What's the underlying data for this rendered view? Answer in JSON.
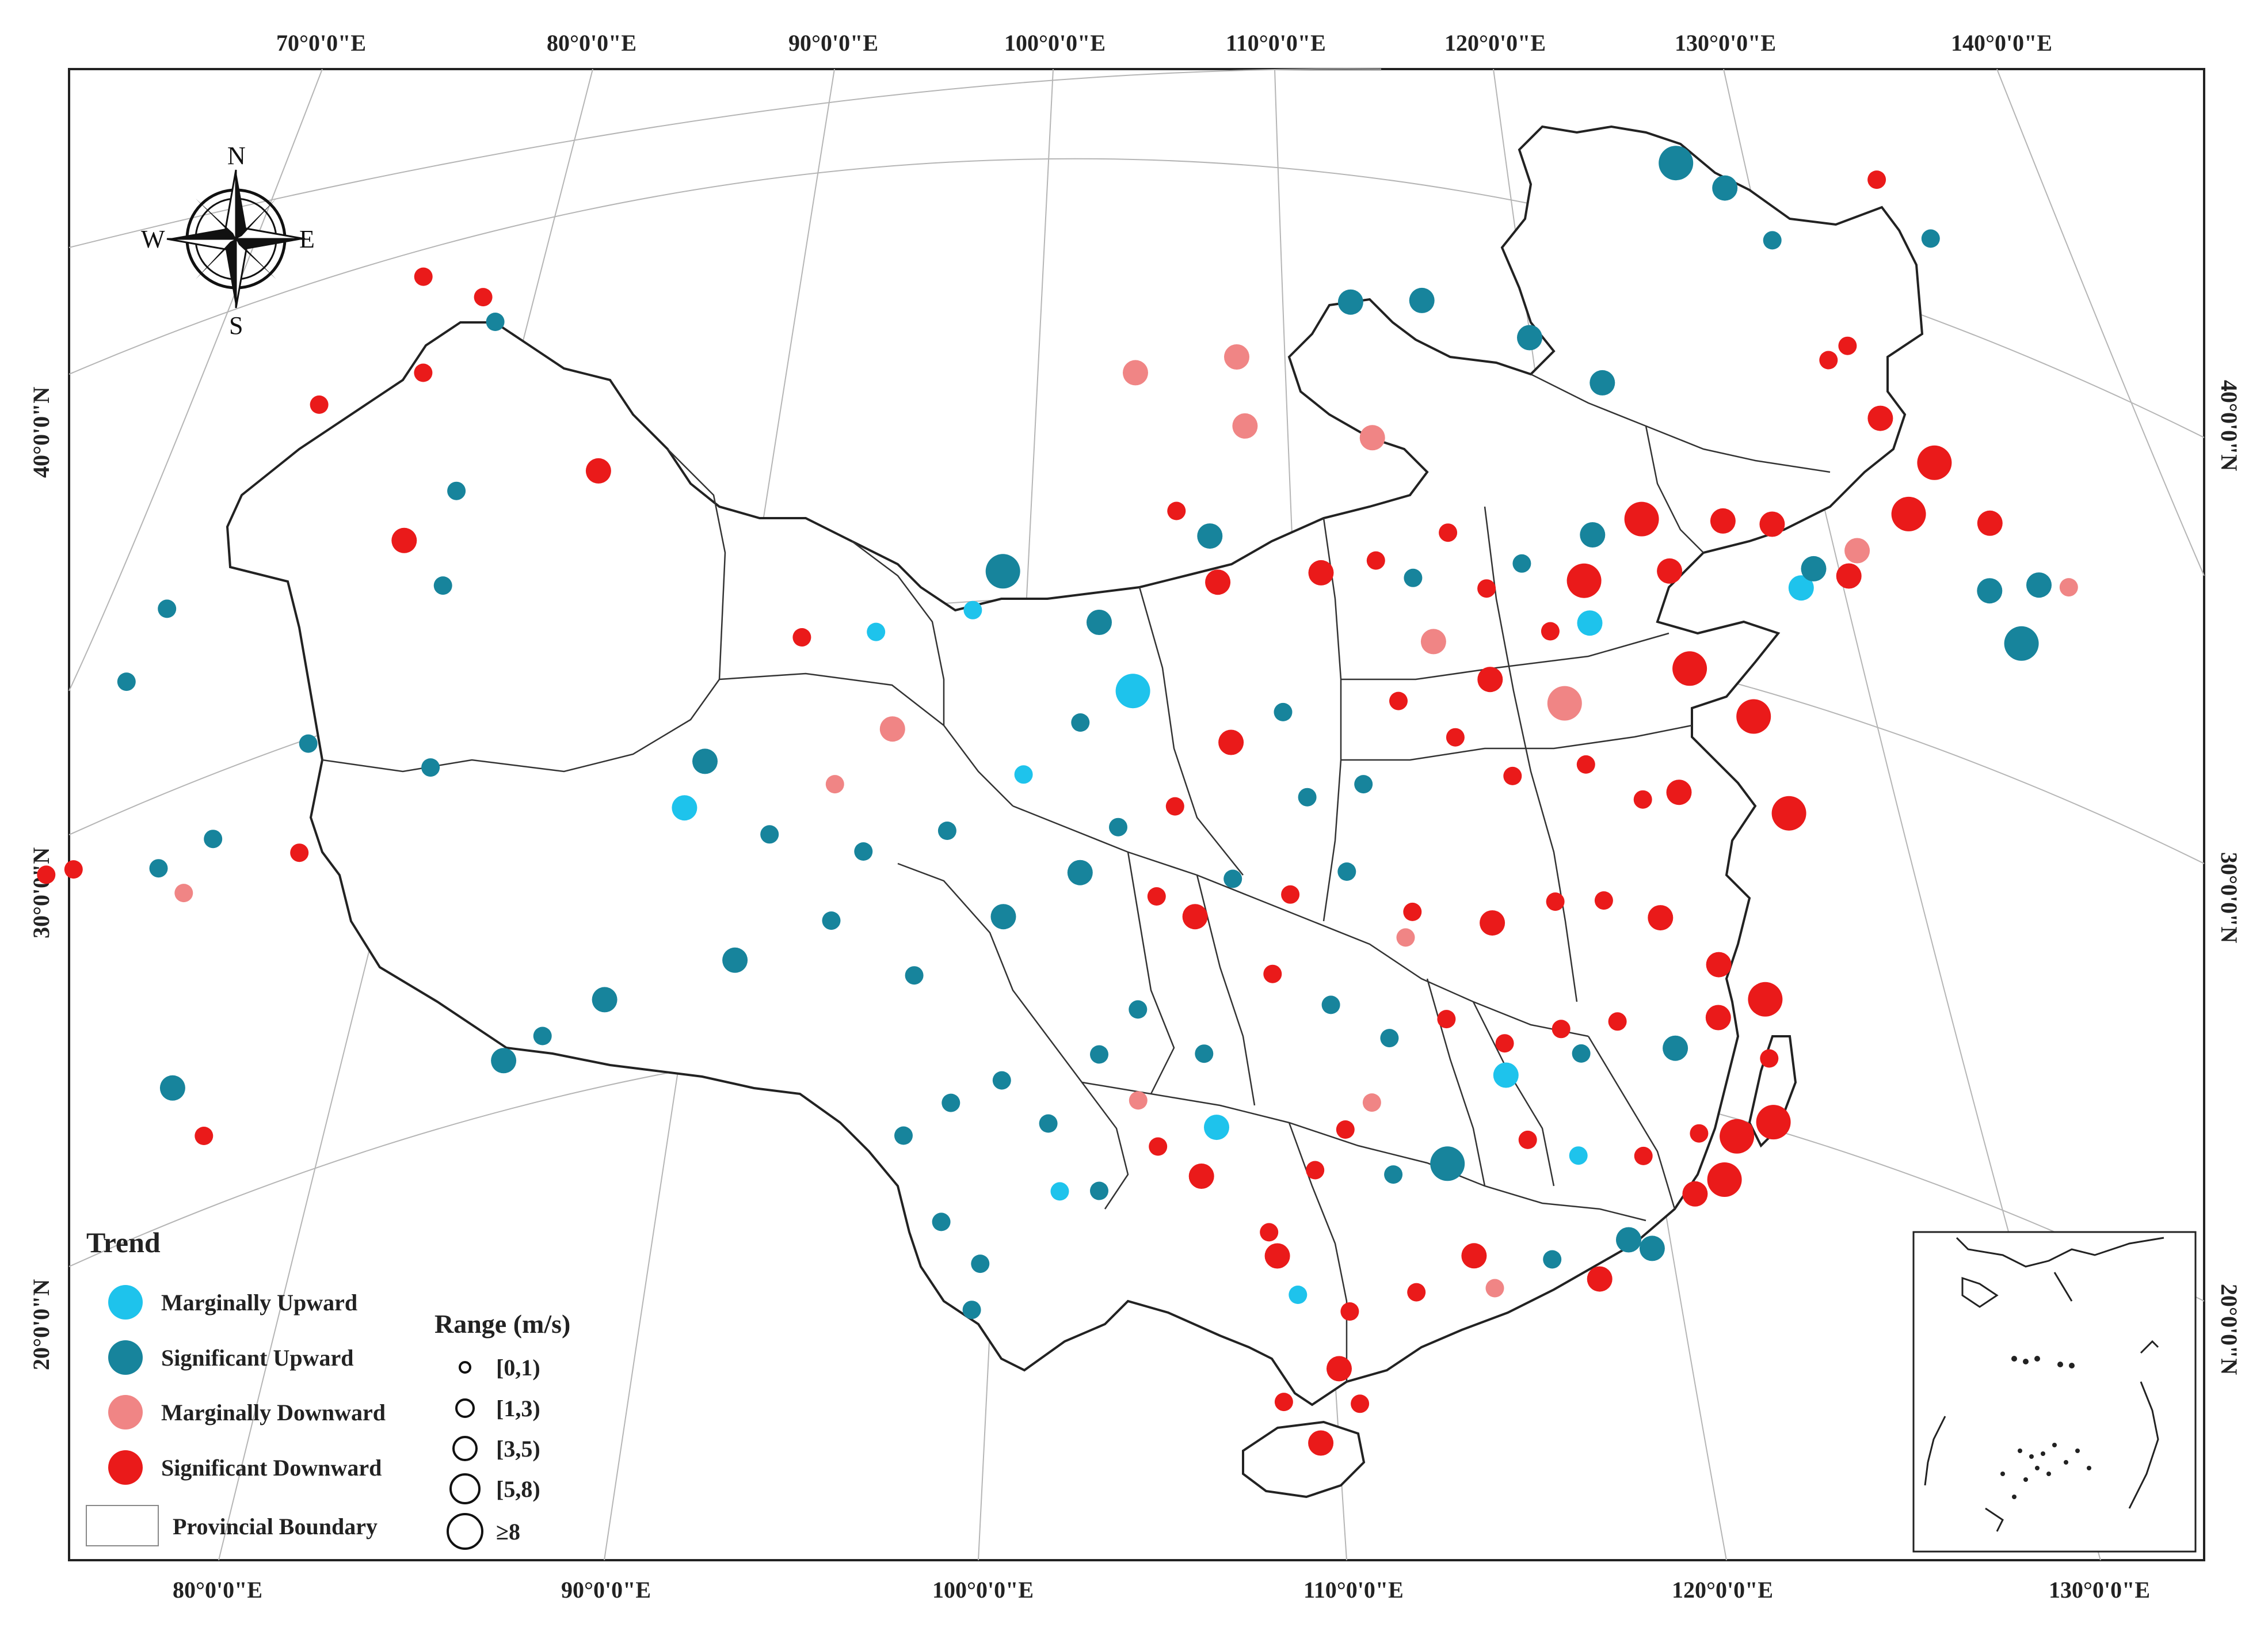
{
  "map": {
    "top_longitude_labels": [
      "70°0'0\"E",
      "80°0'0\"E",
      "90°0'0\"E",
      "100°0'0\"E",
      "110°0'0\"E",
      "120°0'0\"E",
      "130°0'0\"E",
      "140°0'0\"E"
    ],
    "bottom_longitude_labels": [
      "80°0'0\"E",
      "90°0'0\"E",
      "100°0'0\"E",
      "110°0'0\"E",
      "120°0'0\"E",
      "130°0'0\"E"
    ],
    "left_latitude_labels": [
      "40°0'0\"N",
      "30°0'0\"N",
      "20°0'0\"N"
    ],
    "right_latitude_labels": [
      "40°0'0\"N",
      "30°0'0\"N",
      "20°0'0\"N"
    ]
  },
  "compass": {
    "n": "N",
    "s": "S",
    "e": "E",
    "w": "W"
  },
  "legend": {
    "trend_title": "Trend",
    "trend_items": [
      {
        "label": "Marginally Upward",
        "color": "#1ec3ec"
      },
      {
        "label": "Significant Upward",
        "color": "#17849c"
      },
      {
        "label": "Marginally Downward",
        "color": "#f08585"
      },
      {
        "label": "Significant Downward",
        "color": "#ea1a1a"
      }
    ],
    "boundary_label": "Provincial Boundary",
    "range_title": "Range (m/s)",
    "range_items": [
      "[0,1)",
      "[1,3)",
      "[3,5)",
      "[5,8)",
      "≥8"
    ]
  },
  "stations": [
    {
      "lon": 126.5,
      "lat": 51.5,
      "trend": 3,
      "range": 1
    },
    {
      "lon": 128.0,
      "lat": 51.0,
      "trend": 1,
      "range": 1
    },
    {
      "lon": 120.5,
      "lat": 49.2,
      "trend": 1,
      "range": 3
    },
    {
      "lon": 121.9,
      "lat": 49.2,
      "trend": 1,
      "range": 2
    },
    {
      "lon": 123.2,
      "lat": 48.6,
      "trend": 1,
      "range": 1
    },
    {
      "lon": 125.2,
      "lat": 47.2,
      "trend": 3,
      "range": 1
    },
    {
      "lon": 124.6,
      "lat": 46.6,
      "trend": 3,
      "range": 1
    },
    {
      "lon": 126.0,
      "lat": 46.0,
      "trend": 3,
      "range": 2
    },
    {
      "lon": 127.5,
      "lat": 45.8,
      "trend": 3,
      "range": 3
    },
    {
      "lon": 129.0,
      "lat": 45.3,
      "trend": 3,
      "range": 2
    },
    {
      "lon": 130.3,
      "lat": 44.7,
      "trend": 1,
      "range": 2
    },
    {
      "lon": 131.2,
      "lat": 45.2,
      "trend": 2,
      "range": 1
    },
    {
      "lon": 126.6,
      "lat": 44.2,
      "trend": 3,
      "range": 3
    },
    {
      "lon": 128.8,
      "lat": 43.7,
      "trend": 1,
      "range": 2
    },
    {
      "lon": 129.6,
      "lat": 43.0,
      "trend": 1,
      "range": 3
    },
    {
      "lon": 125.0,
      "lat": 42.6,
      "trend": 2,
      "range": 2
    },
    {
      "lon": 124.7,
      "lat": 41.9,
      "trend": 3,
      "range": 2
    },
    {
      "lon": 122.6,
      "lat": 42.1,
      "trend": 3,
      "range": 2
    },
    {
      "lon": 121.2,
      "lat": 41.6,
      "trend": 3,
      "range": 2
    },
    {
      "lon": 118.9,
      "lat": 40.8,
      "trend": 3,
      "range": 3
    },
    {
      "lon": 117.5,
      "lat": 40.0,
      "trend": 1,
      "range": 2
    },
    {
      "lon": 119.6,
      "lat": 39.9,
      "trend": 3,
      "range": 2
    },
    {
      "lon": 117.2,
      "lat": 38.9,
      "trend": 3,
      "range": 3
    },
    {
      "lon": 120.0,
      "lat": 37.9,
      "trend": 3,
      "range": 3
    },
    {
      "lon": 121.7,
      "lat": 37.5,
      "trend": 3,
      "range": 3
    },
    {
      "lon": 122.5,
      "lat": 35.7,
      "trend": 3,
      "range": 3
    },
    {
      "lon": 113.0,
      "lat": 44.0,
      "trend": 1,
      "range": 2
    },
    {
      "lon": 116.0,
      "lat": 43.9,
      "trend": 1,
      "range": 2
    },
    {
      "lon": 111.0,
      "lat": 43.6,
      "trend": 1,
      "range": 2
    },
    {
      "lon": 118.0,
      "lat": 43.5,
      "trend": 1,
      "range": 2
    },
    {
      "lon": 107.8,
      "lat": 42.0,
      "trend": 2,
      "range": 2
    },
    {
      "lon": 105.0,
      "lat": 41.5,
      "trend": 2,
      "range": 2
    },
    {
      "lon": 84.8,
      "lat": 47.8,
      "trend": 3,
      "range": 1
    },
    {
      "lon": 86.6,
      "lat": 46.6,
      "trend": 3,
      "range": 1
    },
    {
      "lon": 82.0,
      "lat": 46.3,
      "trend": 3,
      "range": 1
    },
    {
      "lon": 85.0,
      "lat": 45.6,
      "trend": 3,
      "range": 1
    },
    {
      "lon": 78.0,
      "lat": 44.0,
      "trend": 1,
      "range": 1
    },
    {
      "lon": 77.0,
      "lat": 43.0,
      "trend": 1,
      "range": 1
    },
    {
      "lon": 87.0,
      "lat": 45.9,
      "trend": 1,
      "range": 1
    },
    {
      "lon": 84.8,
      "lat": 42.0,
      "trend": 3,
      "range": 2
    },
    {
      "lon": 90.2,
      "lat": 41.5,
      "trend": 3,
      "range": 2
    },
    {
      "lon": 76.0,
      "lat": 39.5,
      "trend": 3,
      "range": 1
    },
    {
      "lon": 75.2,
      "lat": 39.9,
      "trend": 3,
      "range": 1
    },
    {
      "lon": 78.5,
      "lat": 38.0,
      "trend": 1,
      "range": 1
    },
    {
      "lon": 80.0,
      "lat": 37.8,
      "trend": 1,
      "range": 1
    },
    {
      "lon": 82.5,
      "lat": 38.6,
      "trend": 1,
      "range": 1
    },
    {
      "lon": 86.0,
      "lat": 40.5,
      "trend": 1,
      "range": 1
    },
    {
      "lon": 86.2,
      "lat": 42.5,
      "trend": 1,
      "range": 1
    },
    {
      "lon": 79.3,
      "lat": 37.0,
      "trend": 2,
      "range": 1
    },
    {
      "lon": 82.5,
      "lat": 36.2,
      "trend": 3,
      "range": 1
    },
    {
      "lon": 86.0,
      "lat": 36.5,
      "trend": 1,
      "range": 1
    },
    {
      "lon": 79.5,
      "lat": 32.6,
      "trend": 1,
      "range": 2
    },
    {
      "lon": 80.5,
      "lat": 31.0,
      "trend": 3,
      "range": 1
    },
    {
      "lon": 88.5,
      "lat": 29.1,
      "trend": 1,
      "range": 2
    },
    {
      "lon": 89.5,
      "lat": 29.3,
      "trend": 1,
      "range": 1
    },
    {
      "lon": 91.1,
      "lat": 29.6,
      "trend": 1,
      "range": 2
    },
    {
      "lon": 93.0,
      "lat": 33.3,
      "trend": 0,
      "range": 2
    },
    {
      "lon": 93.5,
      "lat": 34.2,
      "trend": 1,
      "range": 2
    },
    {
      "lon": 96.0,
      "lat": 36.4,
      "trend": 3,
      "range": 1
    },
    {
      "lon": 98.0,
      "lat": 36.2,
      "trend": 0,
      "range": 1
    },
    {
      "lon": 100.6,
      "lat": 36.4,
      "trend": 0,
      "range": 1
    },
    {
      "lon": 101.4,
      "lat": 37.2,
      "trend": 1,
      "range": 3
    },
    {
      "lon": 98.5,
      "lat": 34.0,
      "trend": 2,
      "range": 2
    },
    {
      "lon": 97.0,
      "lat": 33.0,
      "trend": 2,
      "range": 1
    },
    {
      "lon": 95.3,
      "lat": 32.2,
      "trend": 1,
      "range": 1
    },
    {
      "lon": 97.8,
      "lat": 31.4,
      "trend": 1,
      "range": 1
    },
    {
      "lon": 100.0,
      "lat": 31.6,
      "trend": 1,
      "range": 1
    },
    {
      "lon": 102.0,
      "lat": 32.7,
      "trend": 0,
      "range": 1
    },
    {
      "lon": 99.2,
      "lat": 28.5,
      "trend": 1,
      "range": 1
    },
    {
      "lon": 97.0,
      "lat": 30.0,
      "trend": 1,
      "range": 1
    },
    {
      "lon": 94.5,
      "lat": 29.6,
      "trend": 1,
      "range": 2
    },
    {
      "lon": 101.5,
      "lat": 29.6,
      "trend": 1,
      "range": 2
    },
    {
      "lon": 104.0,
      "lat": 36.0,
      "trend": 1,
      "range": 2
    },
    {
      "lon": 104.9,
      "lat": 34.5,
      "trend": 0,
      "range": 3
    },
    {
      "lon": 103.5,
      "lat": 33.8,
      "trend": 1,
      "range": 1
    },
    {
      "lon": 106.1,
      "lat": 38.5,
      "trend": 3,
      "range": 1
    },
    {
      "lon": 107.0,
      "lat": 38.0,
      "trend": 1,
      "range": 2
    },
    {
      "lon": 108.9,
      "lat": 34.3,
      "trend": 1,
      "range": 1
    },
    {
      "lon": 107.2,
      "lat": 37.0,
      "trend": 3,
      "range": 2
    },
    {
      "lon": 110.0,
      "lat": 37.5,
      "trend": 3,
      "range": 2
    },
    {
      "lon": 111.5,
      "lat": 38.0,
      "trend": 3,
      "range": 1
    },
    {
      "lon": 112.5,
      "lat": 37.8,
      "trend": 1,
      "range": 1
    },
    {
      "lon": 113.5,
      "lat": 39.0,
      "trend": 3,
      "range": 1
    },
    {
      "lon": 114.5,
      "lat": 38.0,
      "trend": 3,
      "range": 1
    },
    {
      "lon": 115.5,
      "lat": 38.8,
      "trend": 1,
      "range": 1
    },
    {
      "lon": 116.2,
      "lat": 37.5,
      "trend": 3,
      "range": 1
    },
    {
      "lon": 114.5,
      "lat": 36.0,
      "trend": 3,
      "range": 2
    },
    {
      "lon": 116.5,
      "lat": 36.0,
      "trend": 2,
      "range": 3
    },
    {
      "lon": 117.0,
      "lat": 34.8,
      "trend": 3,
      "range": 1
    },
    {
      "lon": 118.5,
      "lat": 34.5,
      "trend": 3,
      "range": 1
    },
    {
      "lon": 119.5,
      "lat": 35.0,
      "trend": 3,
      "range": 2
    },
    {
      "lon": 112.0,
      "lat": 35.0,
      "trend": 3,
      "range": 1
    },
    {
      "lon": 113.5,
      "lat": 34.5,
      "trend": 3,
      "range": 1
    },
    {
      "lon": 115.0,
      "lat": 34.0,
      "trend": 3,
      "range": 1
    },
    {
      "lon": 111.0,
      "lat": 33.0,
      "trend": 1,
      "range": 1
    },
    {
      "lon": 109.5,
      "lat": 32.5,
      "trend": 1,
      "range": 1
    },
    {
      "lon": 107.5,
      "lat": 33.5,
      "trend": 3,
      "range": 2
    },
    {
      "lon": 106.0,
      "lat": 32.0,
      "trend": 3,
      "range": 1
    },
    {
      "lon": 104.5,
      "lat": 31.5,
      "trend": 1,
      "range": 1
    },
    {
      "lon": 103.5,
      "lat": 30.5,
      "trend": 1,
      "range": 2
    },
    {
      "lon": 105.5,
      "lat": 30.0,
      "trend": 3,
      "range": 1
    },
    {
      "lon": 107.5,
      "lat": 30.5,
      "trend": 1,
      "range": 1
    },
    {
      "lon": 106.5,
      "lat": 29.6,
      "trend": 3,
      "range": 2
    },
    {
      "lon": 109.0,
      "lat": 30.3,
      "trend": 3,
      "range": 1
    },
    {
      "lon": 110.5,
      "lat": 31.0,
      "trend": 1,
      "range": 1
    },
    {
      "lon": 112.2,
      "lat": 30.4,
      "trend": 3,
      "range": 1
    },
    {
      "lon": 114.3,
      "lat": 30.6,
      "trend": 3,
      "range": 2
    },
    {
      "lon": 116.0,
      "lat": 31.5,
      "trend": 3,
      "range": 1
    },
    {
      "lon": 117.3,
      "lat": 31.9,
      "trend": 3,
      "range": 1
    },
    {
      "lon": 118.8,
      "lat": 32.0,
      "trend": 3,
      "range": 2
    },
    {
      "lon": 120.3,
      "lat": 31.5,
      "trend": 3,
      "range": 2
    },
    {
      "lon": 121.5,
      "lat": 31.2,
      "trend": 3,
      "range": 3
    },
    {
      "lon": 120.2,
      "lat": 30.3,
      "trend": 3,
      "range": 2
    },
    {
      "lon": 121.5,
      "lat": 29.9,
      "trend": 3,
      "range": 1
    },
    {
      "lon": 121.5,
      "lat": 28.5,
      "trend": 3,
      "range": 3
    },
    {
      "lon": 120.7,
      "lat": 28.0,
      "trend": 3,
      "range": 1
    },
    {
      "lon": 119.0,
      "lat": 29.2,
      "trend": 1,
      "range": 2
    },
    {
      "lon": 117.5,
      "lat": 29.3,
      "trend": 3,
      "range": 1
    },
    {
      "lon": 116.0,
      "lat": 28.7,
      "trend": 3,
      "range": 1
    },
    {
      "lon": 114.5,
      "lat": 28.0,
      "trend": 3,
      "range": 1
    },
    {
      "lon": 113.0,
      "lat": 28.2,
      "trend": 3,
      "range": 1
    },
    {
      "lon": 111.5,
      "lat": 27.5,
      "trend": 1,
      "range": 1
    },
    {
      "lon": 110.0,
      "lat": 28.0,
      "trend": 1,
      "range": 1
    },
    {
      "lon": 108.5,
      "lat": 28.5,
      "trend": 3,
      "range": 1
    },
    {
      "lon": 106.7,
      "lat": 26.6,
      "trend": 1,
      "range": 1
    },
    {
      "lon": 105.0,
      "lat": 27.5,
      "trend": 1,
      "range": 1
    },
    {
      "lon": 104.0,
      "lat": 26.5,
      "trend": 1,
      "range": 1
    },
    {
      "lon": 102.7,
      "lat": 25.0,
      "trend": 1,
      "range": 1
    },
    {
      "lon": 101.5,
      "lat": 26.0,
      "trend": 1,
      "range": 1
    },
    {
      "lon": 100.2,
      "lat": 25.6,
      "trend": 1,
      "range": 1
    },
    {
      "lon": 99.0,
      "lat": 25.0,
      "trend": 1,
      "range": 1
    },
    {
      "lon": 100.0,
      "lat": 23.0,
      "trend": 1,
      "range": 1
    },
    {
      "lon": 101.0,
      "lat": 22.0,
      "trend": 1,
      "range": 1
    },
    {
      "lon": 100.8,
      "lat": 21.0,
      "trend": 1,
      "range": 1
    },
    {
      "lon": 103.0,
      "lat": 23.5,
      "trend": 0,
      "range": 1
    },
    {
      "lon": 104.0,
      "lat": 23.5,
      "trend": 1,
      "range": 1
    },
    {
      "lon": 105.5,
      "lat": 24.5,
      "trend": 3,
      "range": 1
    },
    {
      "lon": 106.6,
      "lat": 23.9,
      "trend": 3,
      "range": 2
    },
    {
      "lon": 108.3,
      "lat": 22.8,
      "trend": 3,
      "range": 1
    },
    {
      "lon": 109.5,
      "lat": 24.3,
      "trend": 3,
      "range": 1
    },
    {
      "lon": 110.3,
      "lat": 25.3,
      "trend": 3,
      "range": 1
    },
    {
      "lon": 111.5,
      "lat": 24.5,
      "trend": 1,
      "range": 1
    },
    {
      "lon": 112.9,
      "lat": 25.0,
      "trend": 1,
      "range": 3
    },
    {
      "lon": 113.5,
      "lat": 23.1,
      "trend": 3,
      "range": 2
    },
    {
      "lon": 114.0,
      "lat": 22.5,
      "trend": 2,
      "range": 1
    },
    {
      "lon": 112.0,
      "lat": 22.0,
      "trend": 3,
      "range": 1
    },
    {
      "lon": 110.3,
      "lat": 21.3,
      "trend": 3,
      "range": 1
    },
    {
      "lon": 109.0,
      "lat": 21.5,
      "trend": 0,
      "range": 1
    },
    {
      "lon": 108.5,
      "lat": 22.3,
      "trend": 3,
      "range": 2
    },
    {
      "lon": 115.5,
      "lat": 23.5,
      "trend": 1,
      "range": 1
    },
    {
      "lon": 116.7,
      "lat": 23.4,
      "trend": 3,
      "range": 2
    },
    {
      "lon": 117.5,
      "lat": 24.5,
      "trend": 1,
      "range": 2
    },
    {
      "lon": 118.1,
      "lat": 24.5,
      "trend": 1,
      "range": 2
    },
    {
      "lon": 119.3,
      "lat": 26.1,
      "trend": 3,
      "range": 2
    },
    {
      "lon": 118.0,
      "lat": 26.5,
      "trend": 3,
      "range": 1
    },
    {
      "lon": 116.3,
      "lat": 26.0,
      "trend": 0,
      "range": 1
    },
    {
      "lon": 115.0,
      "lat": 26.0,
      "trend": 3,
      "range": 1
    },
    {
      "lon": 114.5,
      "lat": 27.3,
      "trend": 0,
      "range": 2
    },
    {
      "lon": 116.5,
      "lat": 28.3,
      "trend": 1,
      "range": 1
    },
    {
      "lon": 119.5,
      "lat": 27.5,
      "trend": 3,
      "range": 1
    },
    {
      "lon": 120.5,
      "lat": 27.8,
      "trend": 3,
      "range": 3
    },
    {
      "lon": 120.1,
      "lat": 26.7,
      "trend": 3,
      "range": 3
    },
    {
      "lon": 110.0,
      "lat": 20.0,
      "trend": 3,
      "range": 2
    },
    {
      "lon": 109.5,
      "lat": 18.3,
      "trend": 3,
      "range": 2
    },
    {
      "lon": 108.6,
      "lat": 19.1,
      "trend": 3,
      "range": 1
    },
    {
      "lon": 110.5,
      "lat": 19.3,
      "trend": 3,
      "range": 1
    },
    {
      "lon": 112.0,
      "lat": 29.8,
      "trend": 2,
      "range": 1
    },
    {
      "lon": 111.0,
      "lat": 26.0,
      "trend": 2,
      "range": 1
    },
    {
      "lon": 107.0,
      "lat": 25.0,
      "trend": 0,
      "range": 2
    },
    {
      "lon": 105.0,
      "lat": 25.5,
      "trend": 2,
      "range": 1
    },
    {
      "lon": 113.0,
      "lat": 36.5,
      "trend": 2,
      "range": 2
    },
    {
      "lon": 117.3,
      "lat": 38.0,
      "trend": 0,
      "range": 2
    },
    {
      "lon": 123.3,
      "lat": 41.0,
      "trend": 0,
      "range": 2
    },
    {
      "lon": 123.7,
      "lat": 41.6,
      "trend": 1,
      "range": 2
    },
    {
      "lon": 108.0,
      "lat": 40.5,
      "trend": 2,
      "range": 2
    },
    {
      "lon": 111.5,
      "lat": 40.7,
      "trend": 2,
      "range": 2
    }
  ]
}
